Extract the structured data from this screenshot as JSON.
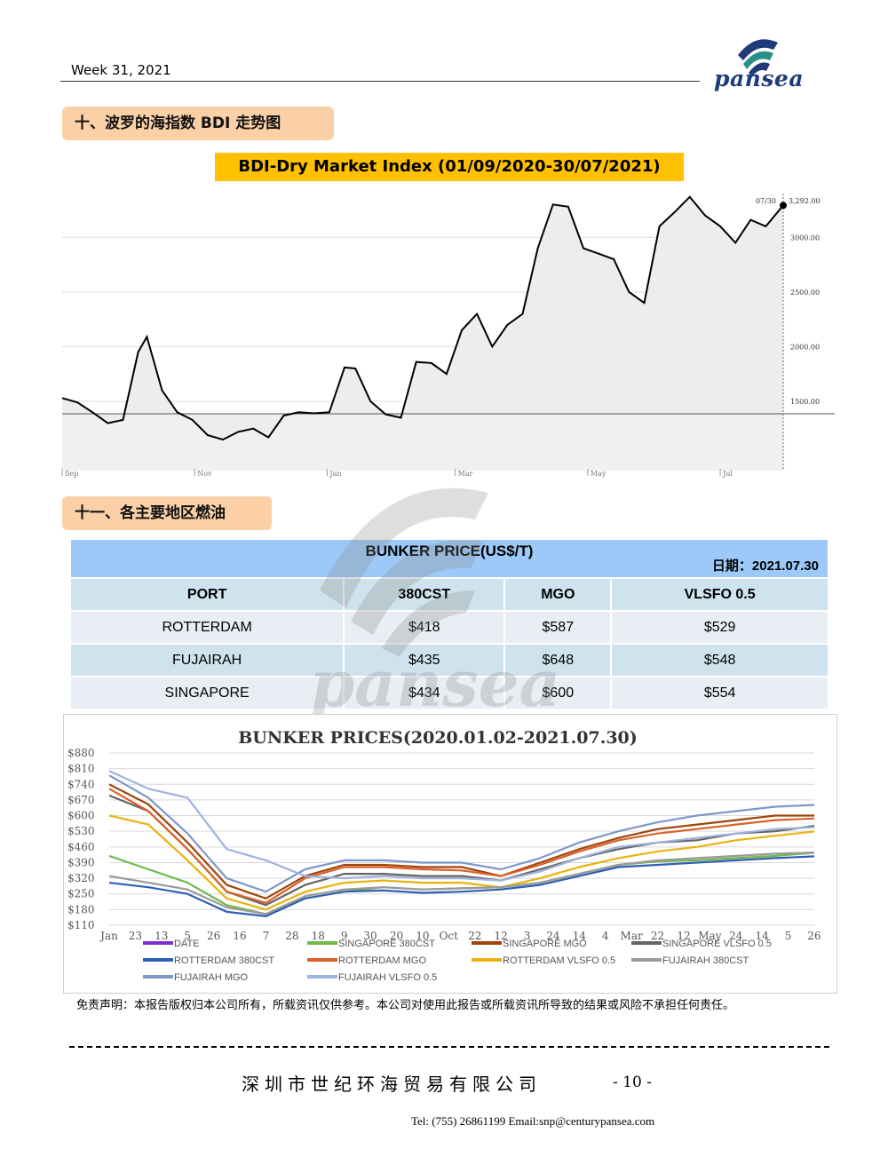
{
  "header": {
    "week": "Week 31, 2021",
    "logo_text": "pansea"
  },
  "sections": {
    "bdi_heading": "十、波罗的海指数 BDI 走势图",
    "bunker_heading": "十一、各主要地区燃油"
  },
  "bdi": {
    "banner": "BDI-Dry Market Index (01/09/2020-30/07/2021)",
    "chart_data": {
      "type": "line",
      "title": "",
      "xlabel": "",
      "ylabel": "",
      "x_ticks": [
        "Sep",
        "Nov",
        "Jan",
        "Mar",
        "May",
        "Jul"
      ],
      "y_ticks": [
        "1500.00",
        "2000.00",
        "2500.00",
        "3000.00"
      ],
      "last_point": {
        "date": "07/30",
        "value": "3,292.00"
      },
      "ylim": [
        850,
        3400
      ],
      "x": [
        "2020-09-01",
        "2020-09-08",
        "2020-09-15",
        "2020-09-22",
        "2020-09-29",
        "2020-10-06",
        "2020-10-10",
        "2020-10-17",
        "2020-10-24",
        "2020-10-31",
        "2020-11-07",
        "2020-11-14",
        "2020-11-21",
        "2020-11-28",
        "2020-12-05",
        "2020-12-12",
        "2020-12-19",
        "2020-12-26",
        "2021-01-02",
        "2021-01-09",
        "2021-01-14",
        "2021-01-21",
        "2021-01-28",
        "2021-02-04",
        "2021-02-11",
        "2021-02-18",
        "2021-02-25",
        "2021-03-04",
        "2021-03-11",
        "2021-03-18",
        "2021-03-25",
        "2021-04-01",
        "2021-04-08",
        "2021-04-15",
        "2021-04-22",
        "2021-04-29",
        "2021-05-06",
        "2021-05-13",
        "2021-05-20",
        "2021-05-27",
        "2021-06-03",
        "2021-06-10",
        "2021-06-17",
        "2021-06-24",
        "2021-07-01",
        "2021-07-08",
        "2021-07-15",
        "2021-07-22",
        "2021-07-30"
      ],
      "series": [
        {
          "color": "#000000",
          "values": [
            1530,
            1490,
            1400,
            1300,
            1330,
            1950,
            2090,
            1600,
            1400,
            1330,
            1190,
            1150,
            1220,
            1250,
            1170,
            1370,
            1400,
            1390,
            1400,
            1810,
            1800,
            1500,
            1380,
            1350,
            1860,
            1850,
            1750,
            2150,
            2300,
            2000,
            2200,
            2300,
            2900,
            3300,
            3280,
            2900,
            2850,
            2800,
            2500,
            2400,
            3100,
            3230,
            3370,
            3200,
            3100,
            2950,
            3160,
            3100,
            3292
          ]
        }
      ]
    }
  },
  "bunker_table": {
    "title": "BUNKER PRICE(US$/T)",
    "date": "日期：2021.07.30",
    "columns": [
      "PORT",
      "380CST",
      "MGO",
      "VLSFO 0.5"
    ],
    "rows": [
      [
        "ROTTERDAM",
        "$418",
        "$587",
        "$529"
      ],
      [
        "FUJAIRAH",
        "$435",
        "$648",
        "$548"
      ],
      [
        "SINGAPORE",
        "$434",
        "$600",
        "$554"
      ]
    ]
  },
  "bunker_chart": {
    "chart_data": {
      "type": "line",
      "title": "BUNKER PRICES(2020.01.02-2021.07.30)",
      "xlabel": "",
      "ylabel": "",
      "y_ticks": [
        "$880",
        "$810",
        "$740",
        "$670",
        "$600",
        "$530",
        "$460",
        "$390",
        "$320",
        "$250",
        "$180",
        "$110"
      ],
      "ylim": [
        110,
        880
      ],
      "x_ticks": [
        "Jan",
        "23",
        "13",
        "5",
        "26",
        "16",
        "7",
        "28",
        "18",
        "9",
        "30",
        "20",
        "10",
        "Oct",
        "22",
        "12",
        "3",
        "24",
        "14",
        "4",
        "Mar",
        "22",
        "12",
        "May",
        "24",
        "14",
        "5",
        "26"
      ],
      "x": [
        "2020-01",
        "2020-02",
        "2020-03",
        "2020-04",
        "2020-05",
        "2020-06",
        "2020-07",
        "2020-08",
        "2020-09",
        "2020-10",
        "2020-11",
        "2020-12",
        "2021-01",
        "2021-02",
        "2021-03",
        "2021-04",
        "2021-05",
        "2021-06",
        "2021-07"
      ],
      "legend": [
        "DATE",
        "SINGAPORE 380CST",
        "SINGAPORE MGO",
        "SINGAPORE VLSFO 0.5",
        "ROTTERDAM 380CST",
        "ROTTERDAM MGO",
        "ROTTERDAM VLSFO 0.5",
        "FUJAIRAH 380CST",
        "FUJAIRAH MGO",
        "FUJAIRAH VLSFO 0.5"
      ],
      "legend_colors": [
        "#7b2fd6",
        "#70b84a",
        "#a0450e",
        "#646464",
        "#2f5fb5",
        "#d9622a",
        "#e8b30f",
        "#9a9a9a",
        "#7f97c9",
        "#9db3e0"
      ],
      "series": [
        {
          "name": "SINGAPORE 380CST",
          "color": "#70b84a",
          "values": [
            420,
            360,
            300,
            200,
            160,
            230,
            260,
            280,
            270,
            275,
            280,
            300,
            340,
            380,
            395,
            400,
            410,
            420,
            434
          ]
        },
        {
          "name": "SINGAPORE MGO",
          "color": "#a0450e",
          "values": [
            740,
            650,
            480,
            290,
            230,
            330,
            380,
            380,
            370,
            370,
            330,
            390,
            450,
            500,
            540,
            560,
            580,
            600,
            600
          ]
        },
        {
          "name": "SINGAPORE VLSFO 0.5",
          "color": "#646464",
          "values": [
            690,
            620,
            450,
            260,
            200,
            290,
            340,
            340,
            330,
            330,
            310,
            360,
            410,
            450,
            480,
            490,
            520,
            530,
            554
          ]
        },
        {
          "name": "ROTTERDAM 380CST",
          "color": "#2f5fb5",
          "values": [
            300,
            280,
            250,
            170,
            150,
            230,
            260,
            265,
            255,
            260,
            270,
            290,
            330,
            370,
            380,
            390,
            400,
            410,
            418
          ]
        },
        {
          "name": "ROTTERDAM MGO",
          "color": "#d9622a",
          "values": [
            720,
            620,
            450,
            260,
            210,
            320,
            370,
            370,
            360,
            355,
            330,
            380,
            440,
            490,
            520,
            540,
            560,
            580,
            587
          ]
        },
        {
          "name": "ROTTERDAM VLSFO 0.5",
          "color": "#e8b30f",
          "values": [
            600,
            560,
            400,
            230,
            180,
            260,
            300,
            310,
            300,
            300,
            280,
            320,
            370,
            410,
            440,
            460,
            490,
            510,
            529
          ]
        },
        {
          "name": "FUJAIRAH 380CST",
          "color": "#9a9a9a",
          "values": [
            330,
            300,
            270,
            190,
            160,
            240,
            270,
            280,
            270,
            275,
            280,
            300,
            340,
            380,
            400,
            410,
            420,
            430,
            435
          ]
        },
        {
          "name": "FUJAIRAH MGO",
          "color": "#7f97c9",
          "values": [
            780,
            680,
            520,
            320,
            260,
            360,
            400,
            400,
            390,
            390,
            360,
            410,
            480,
            530,
            570,
            600,
            620,
            640,
            648
          ]
        },
        {
          "name": "FUJAIRAH VLSFO 0.5",
          "color": "#9db3e0",
          "values": [
            800,
            720,
            680,
            450,
            400,
            330,
            320,
            330,
            320,
            320,
            310,
            350,
            410,
            460,
            480,
            500,
            520,
            540,
            548
          ]
        }
      ]
    }
  },
  "disclaimer": "免责声明：本报告版权归本公司所有，所载资讯仅供参考。本公司对使用此报告或所载资讯所导致的结果或风险不承担任何责任。",
  "footer": {
    "company": "深圳市世纪环海贸易有限公司",
    "page": "- 10 -",
    "contact": "Tel: (755) 26861199    Email:snp@centurypansea.com"
  },
  "colors": {
    "heading_bg": "#fbd0a6",
    "banner_bg": "#ffc000",
    "table_header": "#9cc9f7",
    "table_row": "#cfe3ee",
    "logo_blue": "#1f3b7a"
  }
}
